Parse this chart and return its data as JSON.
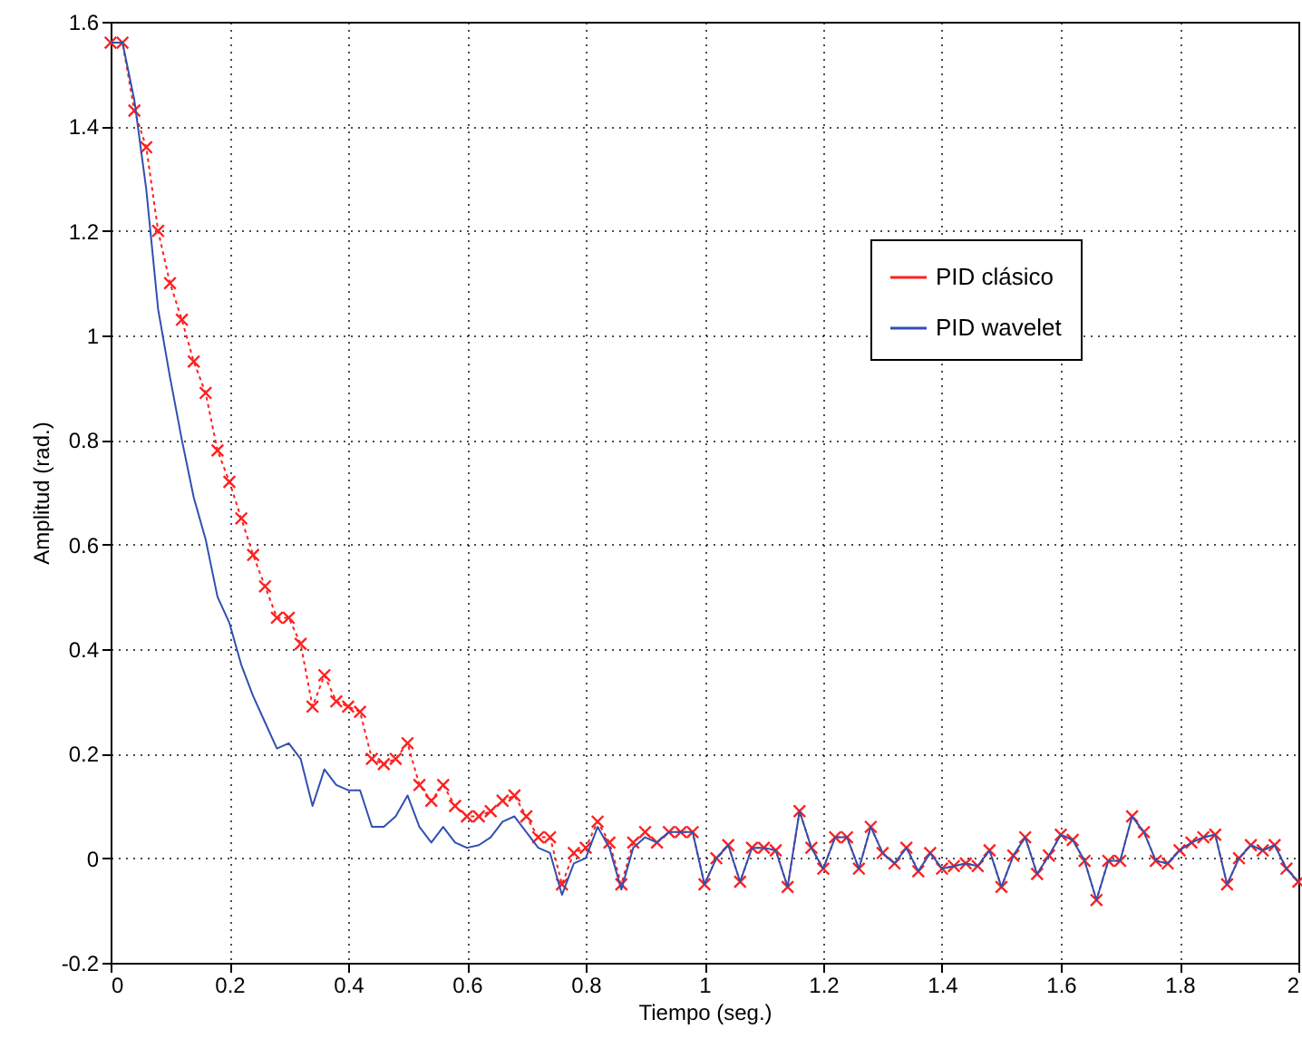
{
  "chart_data": {
    "type": "line",
    "xlabel": "Tiempo (seg.)",
    "ylabel": "Amplitud (rad.)",
    "x": [
      0,
      0.02,
      0.04,
      0.06,
      0.08,
      0.1,
      0.12,
      0.14,
      0.16,
      0.18,
      0.2,
      0.22,
      0.24,
      0.26,
      0.28,
      0.3,
      0.32,
      0.34,
      0.36,
      0.38,
      0.4,
      0.42,
      0.44,
      0.46,
      0.48,
      0.5,
      0.52,
      0.54,
      0.56,
      0.58,
      0.6,
      0.62,
      0.64,
      0.66,
      0.68,
      0.7,
      0.72,
      0.74,
      0.76,
      0.78,
      0.8,
      0.82,
      0.84,
      0.86,
      0.88,
      0.9,
      0.92,
      0.94,
      0.96,
      0.98,
      1,
      1.02,
      1.04,
      1.06,
      1.08,
      1.1,
      1.12,
      1.14,
      1.16,
      1.18,
      1.2,
      1.22,
      1.24,
      1.26,
      1.28,
      1.3,
      1.32,
      1.34,
      1.36,
      1.38,
      1.4,
      1.42,
      1.44,
      1.46,
      1.48,
      1.5,
      1.52,
      1.54,
      1.56,
      1.58,
      1.6,
      1.62,
      1.64,
      1.66,
      1.68,
      1.7,
      1.72,
      1.74,
      1.76,
      1.78,
      1.8,
      1.82,
      1.84,
      1.86,
      1.88,
      1.9,
      1.92,
      1.94,
      1.96,
      1.98,
      2
    ],
    "series": [
      {
        "name": "PID clásico",
        "color": "#ff2020",
        "marker": "cross",
        "line_style": "dotted",
        "values": [
          1.56,
          1.56,
          1.43,
          1.36,
          1.2,
          1.1,
          1.03,
          0.95,
          0.89,
          0.78,
          0.72,
          0.65,
          0.58,
          0.52,
          0.46,
          0.46,
          0.41,
          0.29,
          0.35,
          0.3,
          0.29,
          0.28,
          0.19,
          0.18,
          0.19,
          0.22,
          0.14,
          0.11,
          0.14,
          0.1,
          0.08,
          0.08,
          0.09,
          0.11,
          0.12,
          0.08,
          0.04,
          0.04,
          -0.05,
          0.01,
          0.02,
          0.07,
          0.03,
          -0.05,
          0.03,
          0.05,
          0.03,
          0.05,
          0.05,
          0.05,
          -0.05,
          0,
          0.025,
          -0.045,
          0.02,
          0.02,
          0.015,
          -0.055,
          0.09,
          0.02,
          -0.02,
          0.04,
          0.04,
          -0.02,
          0.06,
          0.01,
          -0.01,
          0.02,
          -0.025,
          0.01,
          -0.02,
          -0.015,
          -0.01,
          -0.015,
          0.015,
          -0.055,
          0.005,
          0.04,
          -0.03,
          0.005,
          0.045,
          0.035,
          -0.005,
          -0.08,
          -0.005,
          -0.005,
          0.08,
          0.05,
          -0.005,
          -0.01,
          0.015,
          0.03,
          0.04,
          0.045,
          -0.05,
          0,
          0.025,
          0.015,
          0.025,
          -0.02,
          -0.045
        ]
      },
      {
        "name": "PID wavelet",
        "color": "#3050b0",
        "marker": "none",
        "line_style": "solid",
        "values": [
          1.56,
          1.56,
          1.45,
          1.28,
          1.05,
          0.92,
          0.8,
          0.69,
          0.61,
          0.5,
          0.45,
          0.37,
          0.31,
          0.26,
          0.21,
          0.22,
          0.19,
          0.1,
          0.17,
          0.14,
          0.13,
          0.13,
          0.06,
          0.06,
          0.08,
          0.12,
          0.06,
          0.03,
          0.06,
          0.03,
          0.02,
          0.025,
          0.04,
          0.07,
          0.08,
          0.05,
          0.02,
          0.01,
          -0.07,
          -0.01,
          0,
          0.06,
          0.02,
          -0.06,
          0.02,
          0.04,
          0.03,
          0.05,
          0.05,
          0.05,
          -0.05,
          0,
          0.025,
          -0.045,
          0.02,
          0.02,
          0.015,
          -0.055,
          0.09,
          0.02,
          -0.02,
          0.04,
          0.04,
          -0.02,
          0.06,
          0.01,
          -0.01,
          0.02,
          -0.025,
          0.01,
          -0.02,
          -0.015,
          -0.01,
          -0.015,
          0.015,
          -0.055,
          0.005,
          0.04,
          -0.03,
          0.005,
          0.045,
          0.035,
          -0.005,
          -0.08,
          -0.005,
          -0.005,
          0.08,
          0.05,
          -0.005,
          -0.01,
          0.015,
          0.03,
          0.04,
          0.045,
          -0.05,
          0,
          0.025,
          0.015,
          0.025,
          -0.02,
          -0.045
        ]
      }
    ],
    "xlim": [
      0,
      2
    ],
    "xticks": [
      0,
      0.2,
      0.4,
      0.6,
      0.8,
      1,
      1.2,
      1.4,
      1.6,
      1.8,
      2
    ],
    "ylim": [
      -0.2,
      1.6
    ],
    "yticks": [
      -0.2,
      0,
      0.2,
      0.4,
      0.6,
      0.8,
      1,
      1.2,
      1.4,
      1.6
    ],
    "grid": true,
    "legend": "top right"
  }
}
